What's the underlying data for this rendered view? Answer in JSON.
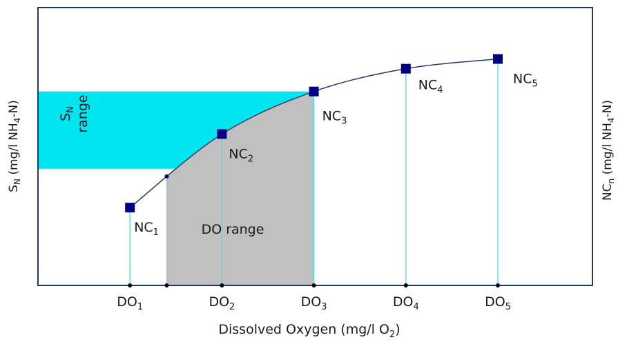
{
  "colors": {
    "frame": "#1f3864",
    "curve": "#1f3864",
    "marker": "#000080",
    "sn_band": "#00e5f0",
    "do_band": "#c0c0c0",
    "drop_line": "#4dd8e8"
  },
  "axes": {
    "x_title": {
      "main": "Dissolved Oxygen (mg/l O",
      "sub": "2",
      "tail": ")"
    },
    "y_left_title": {
      "s": "S",
      "s_sub": "N",
      "main": " (mg/l NH",
      "sub": "4",
      "tail": "-N)"
    },
    "y_right_title": {
      "s": "NC",
      "s_sub": "n",
      "main": " (mg/l NH",
      "sub": "4",
      "tail": "-N)"
    }
  },
  "regions": {
    "sn_range": {
      "s": "S",
      "sub": "N",
      "word": "range"
    },
    "do_range": {
      "text": "DO range"
    }
  },
  "chart_data": {
    "type": "line",
    "series": [
      {
        "points": [
          {
            "do": 1,
            "nc": 2.8
          },
          {
            "do": 2,
            "nc": 5.45
          },
          {
            "do": 3,
            "nc": 6.98
          },
          {
            "do": 4,
            "nc": 7.8
          },
          {
            "do": 5,
            "nc": 8.15
          }
        ],
        "point_labels": [
          {
            "base": "NC",
            "sub": "1"
          },
          {
            "base": "NC",
            "sub": "2"
          },
          {
            "base": "NC",
            "sub": "3"
          },
          {
            "base": "NC",
            "sub": "4"
          },
          {
            "base": "NC",
            "sub": "5"
          }
        ]
      }
    ],
    "x_ticks": [
      {
        "base": "DO",
        "sub": "1",
        "value": 1
      },
      {
        "base": "DO",
        "sub": "2",
        "value": 2
      },
      {
        "base": "DO",
        "sub": "3",
        "value": 3
      },
      {
        "base": "DO",
        "sub": "4",
        "value": 4
      },
      {
        "base": "DO",
        "sub": "5",
        "value": 5
      }
    ],
    "do_range": [
      1.4,
      3
    ],
    "sn_range": [
      4.2,
      6.98
    ],
    "xlim": [
      0,
      6.4
    ],
    "ylim": [
      0,
      10
    ]
  }
}
